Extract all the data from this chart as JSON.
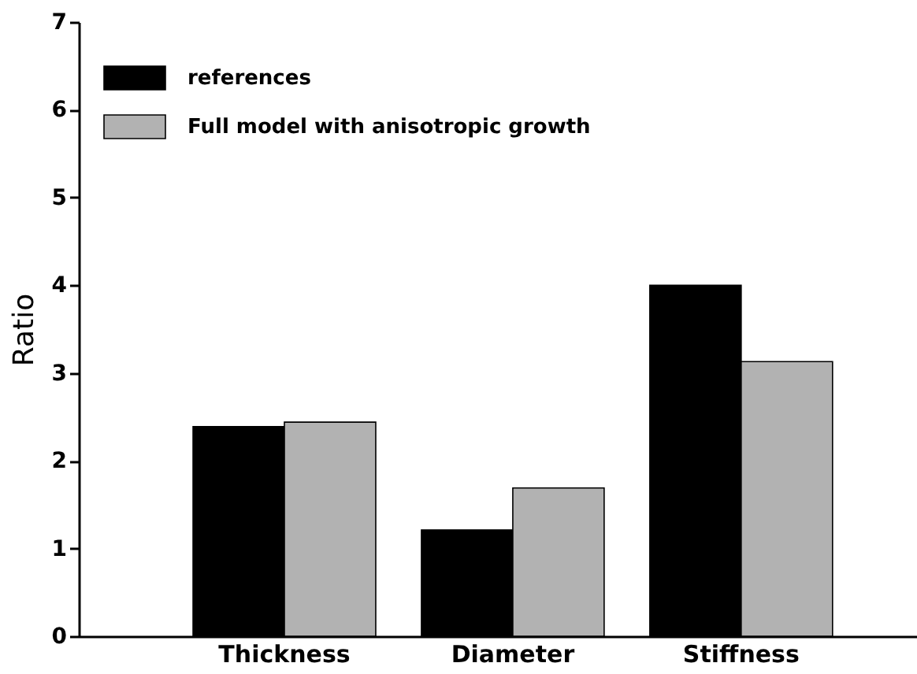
{
  "chart_data": {
    "type": "bar",
    "ylabel": "Ratio",
    "categories": [
      "Thickness",
      "Diameter",
      "Stiffness"
    ],
    "series": [
      {
        "name": "references",
        "color": "#000000",
        "values": [
          2.39,
          1.21,
          4.0
        ]
      },
      {
        "name": "Full model with anisotropic growth",
        "color": "#b2b2b2",
        "values": [
          2.44,
          1.69,
          3.13
        ]
      }
    ],
    "ylim": [
      0,
      7
    ],
    "yticks": [
      0,
      1,
      2,
      3,
      4,
      5,
      6,
      7
    ],
    "grid": false,
    "legend": "top left"
  }
}
